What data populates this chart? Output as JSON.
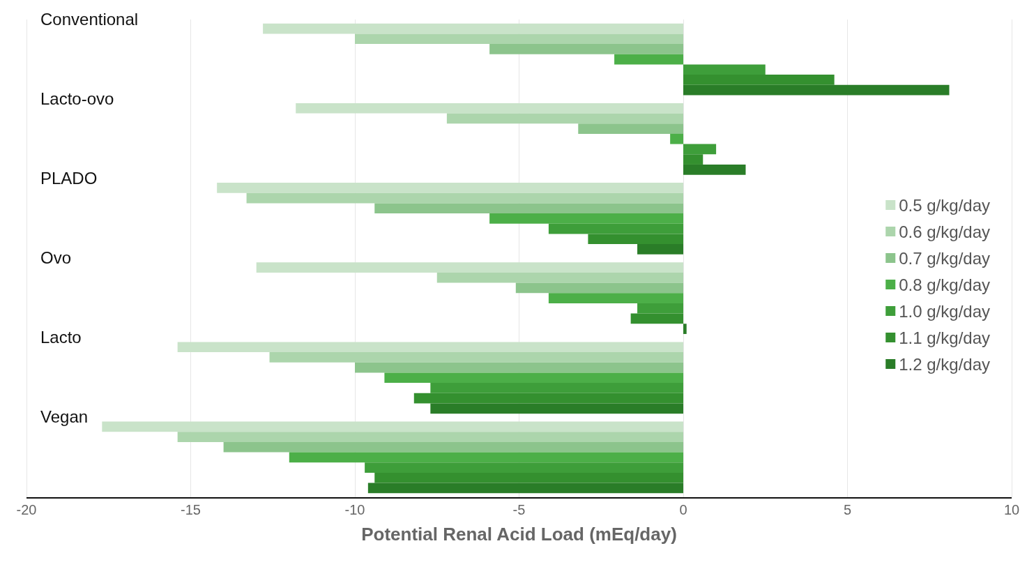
{
  "chart_data": {
    "type": "bar",
    "orientation": "horizontal",
    "xlabel": "Potential Renal Acid Load (mEq/day)",
    "categories": [
      "Conventional",
      "Lacto-ovo",
      "PLADO",
      "Ovo",
      "Lacto",
      "Vegan"
    ],
    "series": [
      {
        "name": "0.5 g/kg/day",
        "color": "#c9e3c9",
        "values": [
          -12.8,
          -11.8,
          -14.2,
          -13.0,
          -15.4,
          -17.7
        ]
      },
      {
        "name": "0.6 g/kg/day",
        "color": "#acd5ac",
        "values": [
          -10.0,
          -7.2,
          -13.3,
          -7.5,
          -12.6,
          -15.4
        ]
      },
      {
        "name": "0.7 g/kg/day",
        "color": "#8cc48c",
        "values": [
          -5.9,
          -3.2,
          -9.4,
          -5.1,
          -10.0,
          -14.0
        ]
      },
      {
        "name": "0.8 g/kg/day",
        "color": "#4caf48",
        "values": [
          -2.1,
          -0.4,
          -5.9,
          -4.1,
          -9.1,
          -12.0
        ]
      },
      {
        "name": "1.0 g/kg/day",
        "color": "#3e9e3a",
        "values": [
          2.5,
          1.0,
          -4.1,
          -1.4,
          -7.7,
          -9.7
        ]
      },
      {
        "name": "1.1 g/kg/day",
        "color": "#34902f",
        "values": [
          4.6,
          0.6,
          -2.9,
          -1.6,
          -8.2,
          -9.4
        ]
      },
      {
        "name": "1.2 g/kg/day",
        "color": "#2a7d28",
        "values": [
          8.1,
          1.9,
          -1.4,
          0.1,
          -7.7,
          -9.6
        ]
      }
    ],
    "xlim": [
      -20,
      10
    ],
    "xticks": [
      -20,
      -15,
      -10,
      -5,
      0,
      5,
      10
    ],
    "grid": "x",
    "legend": "right"
  }
}
